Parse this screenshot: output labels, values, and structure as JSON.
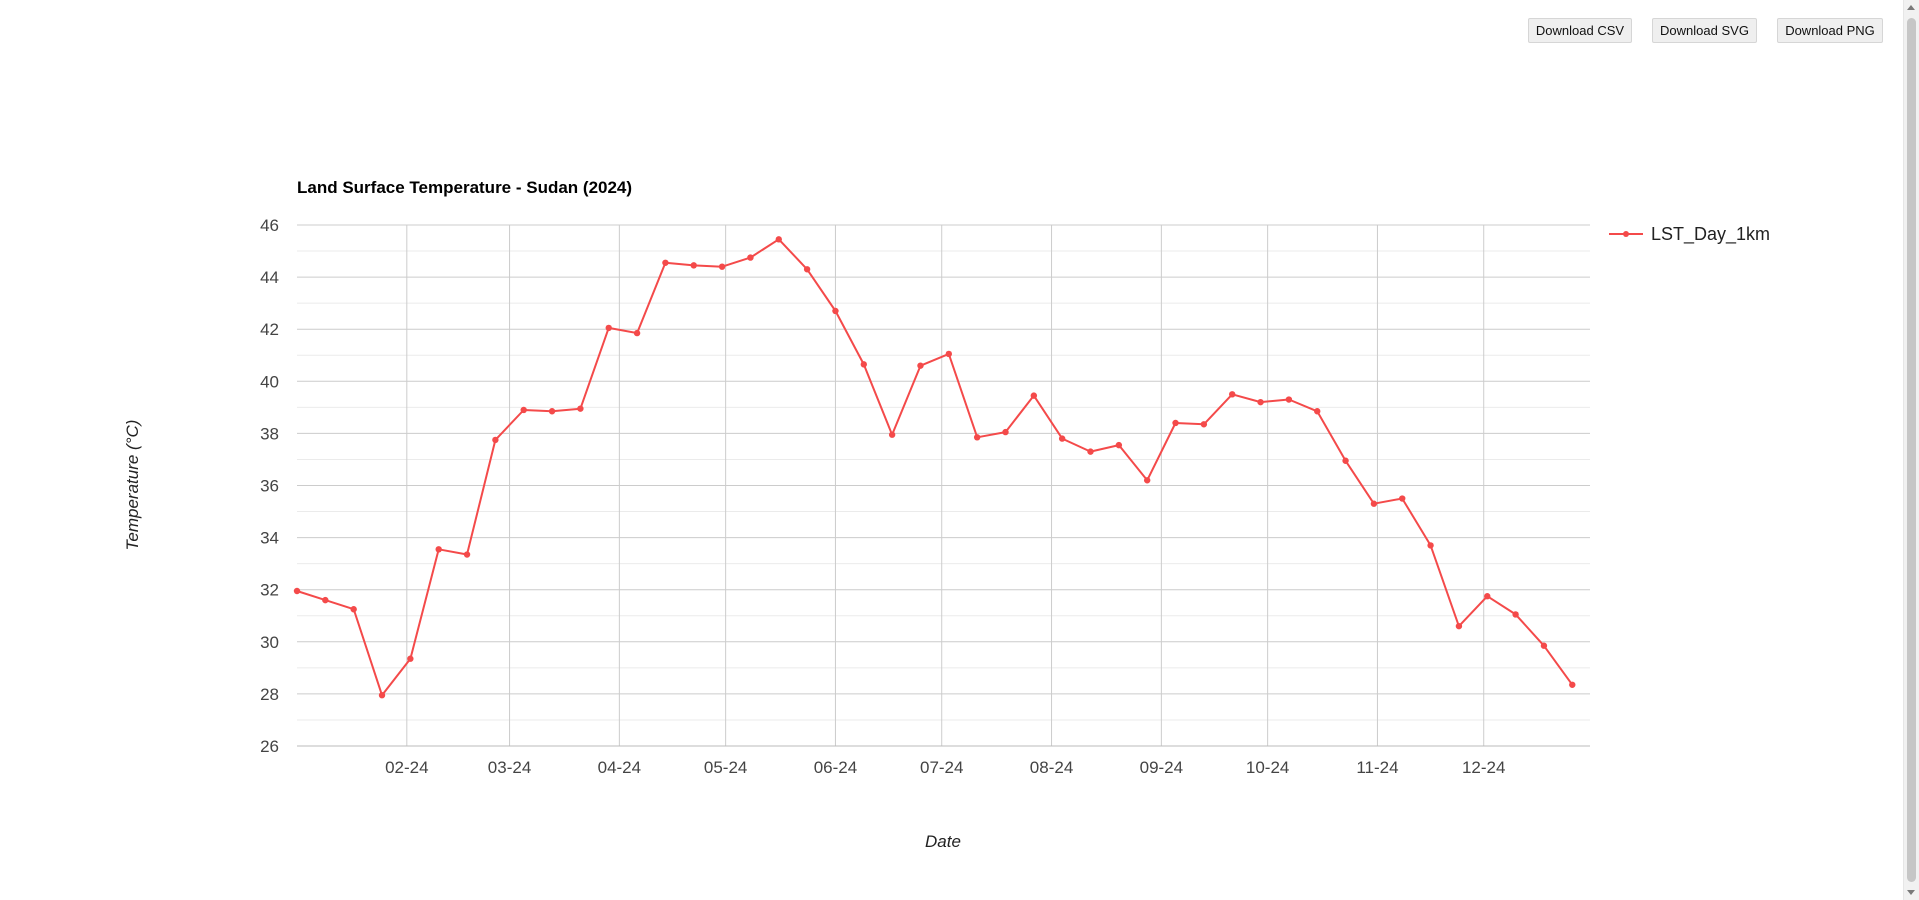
{
  "toolbar": {
    "csv_label": "Download CSV",
    "svg_label": "Download SVG",
    "png_label": "Download PNG"
  },
  "colors": {
    "series": "#f44a4a",
    "grid": "#cccccc",
    "minor_grid": "#ebebeb"
  },
  "chart_data": {
    "type": "line",
    "title": "Land Surface Temperature - Sudan (2024)",
    "xlabel": "Date",
    "ylabel": "Temperature (°C)",
    "ylim": [
      26,
      46
    ],
    "y_ticks": [
      26,
      28,
      30,
      32,
      34,
      36,
      38,
      40,
      42,
      44,
      46
    ],
    "xlim": [
      "2024-01-01",
      "2024-12-31"
    ],
    "x_ticks": [
      {
        "date": "2024-02-01",
        "label": "02-24"
      },
      {
        "date": "2024-03-01",
        "label": "03-24"
      },
      {
        "date": "2024-04-01",
        "label": "04-24"
      },
      {
        "date": "2024-05-01",
        "label": "05-24"
      },
      {
        "date": "2024-06-01",
        "label": "06-24"
      },
      {
        "date": "2024-07-01",
        "label": "07-24"
      },
      {
        "date": "2024-08-01",
        "label": "08-24"
      },
      {
        "date": "2024-09-01",
        "label": "09-24"
      },
      {
        "date": "2024-10-01",
        "label": "10-24"
      },
      {
        "date": "2024-11-01",
        "label": "11-24"
      },
      {
        "date": "2024-12-01",
        "label": "12-24"
      }
    ],
    "grid": true,
    "legend": "right",
    "series": [
      {
        "name": "LST_Day_1km",
        "x": [
          "2024-01-01",
          "2024-01-09",
          "2024-01-17",
          "2024-01-25",
          "2024-02-02",
          "2024-02-10",
          "2024-02-18",
          "2024-02-26",
          "2024-03-05",
          "2024-03-13",
          "2024-03-21",
          "2024-03-29",
          "2024-04-06",
          "2024-04-14",
          "2024-04-22",
          "2024-04-30",
          "2024-05-08",
          "2024-05-16",
          "2024-05-24",
          "2024-06-01",
          "2024-06-09",
          "2024-06-17",
          "2024-06-25",
          "2024-07-03",
          "2024-07-11",
          "2024-07-19",
          "2024-07-27",
          "2024-08-04",
          "2024-08-12",
          "2024-08-20",
          "2024-08-28",
          "2024-09-05",
          "2024-09-13",
          "2024-09-21",
          "2024-09-29",
          "2024-10-07",
          "2024-10-15",
          "2024-10-23",
          "2024-10-31",
          "2024-11-08",
          "2024-11-16",
          "2024-11-24",
          "2024-12-02",
          "2024-12-10",
          "2024-12-18",
          "2024-12-26"
        ],
        "y": [
          31.95,
          31.6,
          31.25,
          27.95,
          29.35,
          33.55,
          33.35,
          37.75,
          38.9,
          38.85,
          38.95,
          42.05,
          41.85,
          44.55,
          44.45,
          44.4,
          44.75,
          45.45,
          44.3,
          42.7,
          40.65,
          37.95,
          40.6,
          41.05,
          37.85,
          38.05,
          39.45,
          37.8,
          37.3,
          37.55,
          36.2,
          38.4,
          38.35,
          39.5,
          39.2,
          39.3,
          38.85,
          36.95,
          35.3,
          35.5,
          33.7,
          30.6,
          31.75,
          31.05,
          29.85,
          28.35
        ]
      }
    ]
  }
}
